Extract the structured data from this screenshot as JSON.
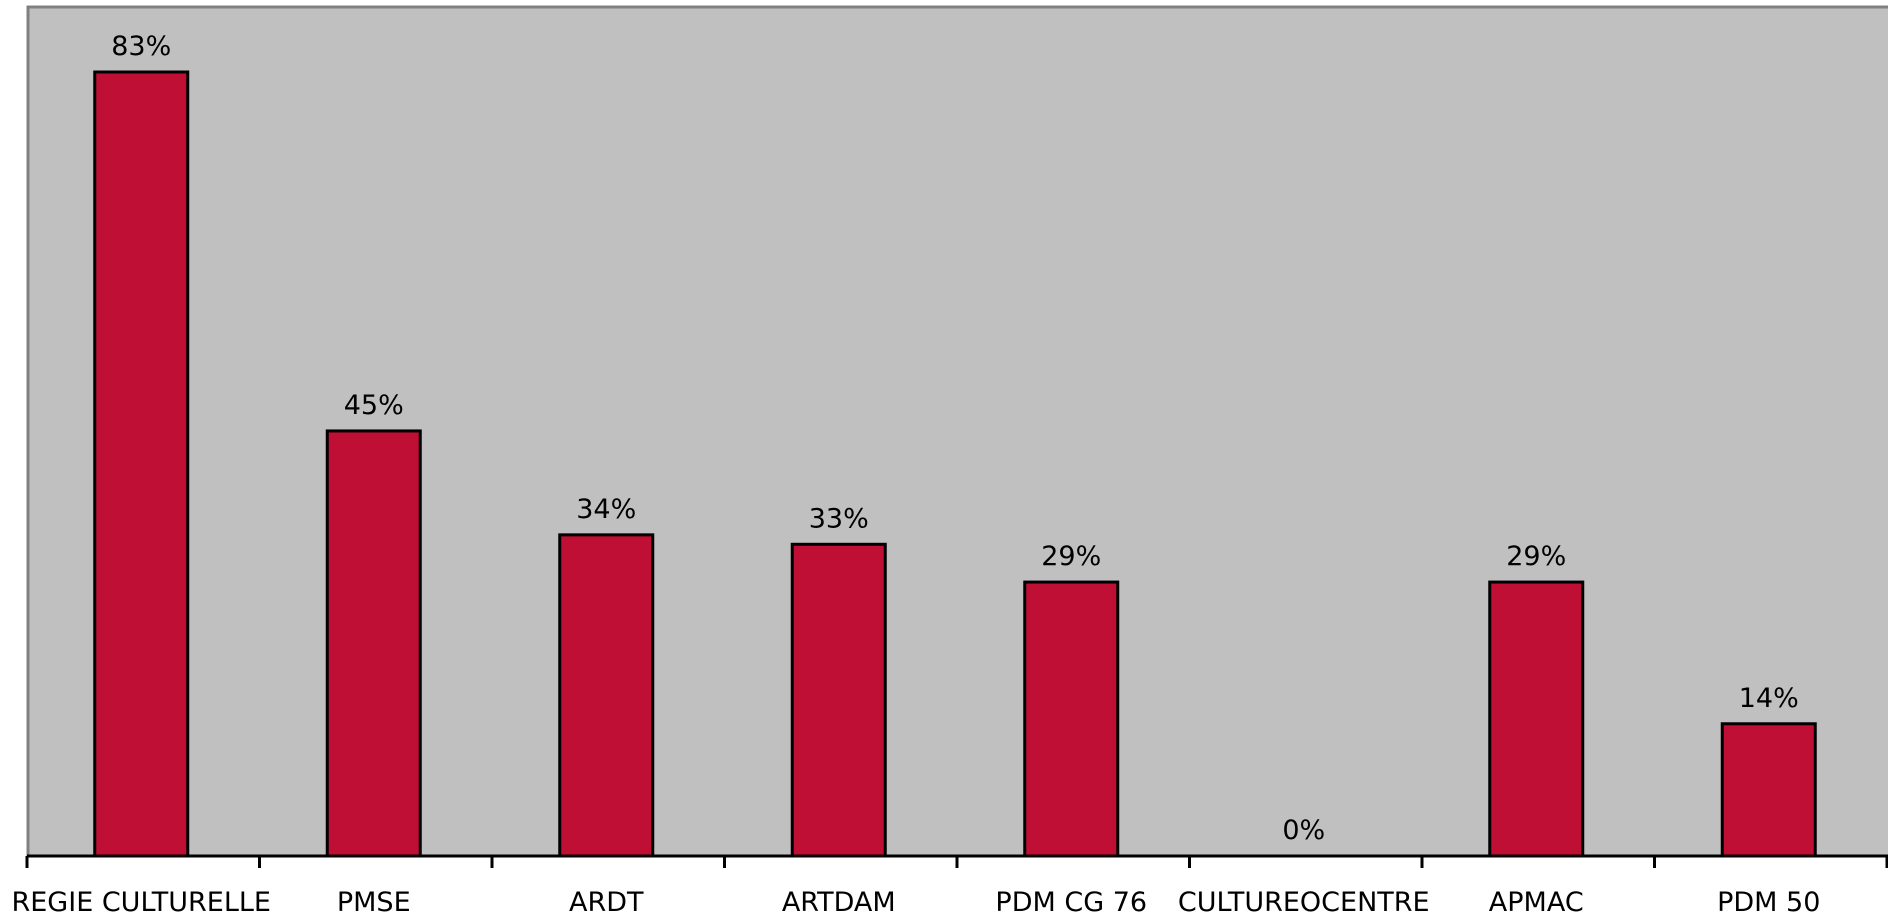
{
  "chart_data": {
    "type": "bar",
    "categories": [
      "REGIE CULTURELLE",
      "PMSE",
      "ARDT",
      "ARTDAM",
      "PDM CG 76",
      "CULTUREOCENTRE",
      "APMAC",
      "PDM 50"
    ],
    "values": [
      83,
      45,
      34,
      33,
      29,
      0,
      29,
      14
    ],
    "value_labels": [
      "83%",
      "45%",
      "34%",
      "33%",
      "29%",
      "0%",
      "29%",
      "14%"
    ],
    "title": "",
    "xlabel": "",
    "ylabel": "",
    "ylim": [
      0,
      90
    ],
    "grid": false,
    "legend": "none"
  },
  "colors": {
    "plot_background": "#c0c0c0",
    "bar_fill": "#c00f34",
    "bar_stroke": "#000000",
    "plot_border": "#808080",
    "axis": "#000000"
  }
}
